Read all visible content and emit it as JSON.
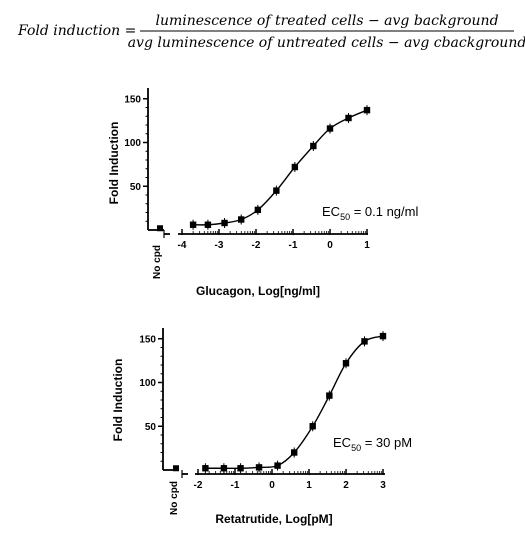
{
  "equation": {
    "lhs": "Fold induction =",
    "numerator": "luminescence of treated cells − avg background",
    "denominator": "avg luminescence of untreated cells − avg cbackground"
  },
  "chart_data": [
    {
      "type": "scatter",
      "xlabel": "Glucagon, Log[ng/ml]",
      "ylabel": "Fold Induction",
      "ylim": [
        0,
        160
      ],
      "yticks": [
        "50",
        "100",
        "150"
      ],
      "xticks": [
        "-4",
        "-3",
        "-2",
        "-1",
        "0",
        "1"
      ],
      "no_cpd_label": "No cpd",
      "ec50": {
        "prefix": "EC",
        "sub": "50",
        "suffix": " = 0.1 ng/ml"
      },
      "no_cpd_value": 2,
      "points": [
        {
          "x": -3.7,
          "y": 6
        },
        {
          "x": -3.3,
          "y": 6
        },
        {
          "x": -2.85,
          "y": 8
        },
        {
          "x": -2.4,
          "y": 12
        },
        {
          "x": -1.95,
          "y": 23
        },
        {
          "x": -1.45,
          "y": 45
        },
        {
          "x": -0.95,
          "y": 72
        },
        {
          "x": -0.45,
          "y": 96
        },
        {
          "x": 0.0,
          "y": 116
        },
        {
          "x": 0.5,
          "y": 128
        },
        {
          "x": 1.0,
          "y": 137
        }
      ]
    },
    {
      "type": "scatter",
      "xlabel": "Retatrutide, Log[pM]",
      "ylabel": "Fold Induction",
      "ylim": [
        0,
        160
      ],
      "yticks": [
        "50",
        "100",
        "150"
      ],
      "xticks": [
        "-2",
        "-1",
        "0",
        "1",
        "2",
        "3"
      ],
      "no_cpd_label": "No cpd",
      "ec50": {
        "prefix": "EC",
        "sub": "50",
        "suffix": " = 30 pM"
      },
      "no_cpd_value": 2,
      "points": [
        {
          "x": -1.8,
          "y": 2
        },
        {
          "x": -1.3,
          "y": 2
        },
        {
          "x": -0.85,
          "y": 2
        },
        {
          "x": -0.35,
          "y": 3
        },
        {
          "x": 0.15,
          "y": 5
        },
        {
          "x": 0.6,
          "y": 20
        },
        {
          "x": 1.1,
          "y": 50
        },
        {
          "x": 1.55,
          "y": 85
        },
        {
          "x": 2.0,
          "y": 122
        },
        {
          "x": 2.5,
          "y": 147
        },
        {
          "x": 3.0,
          "y": 153
        }
      ]
    }
  ]
}
